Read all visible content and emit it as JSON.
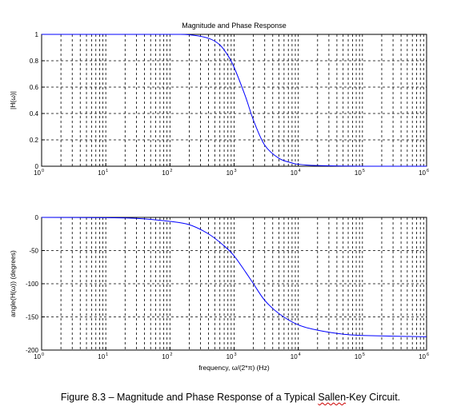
{
  "chart_data": [
    {
      "type": "line",
      "title": "Magnitude and Phase Response",
      "xlabel": "",
      "ylabel": "|H(ω)|",
      "x_scale": "log",
      "xlim": [
        1,
        1000000
      ],
      "ylim": [
        0,
        1
      ],
      "grid": true,
      "x_ticks": [
        {
          "base": "10",
          "exp": "0"
        },
        {
          "base": "10",
          "exp": "1"
        },
        {
          "base": "10",
          "exp": "2"
        },
        {
          "base": "10",
          "exp": "3"
        },
        {
          "base": "10",
          "exp": "4"
        },
        {
          "base": "10",
          "exp": "5"
        },
        {
          "base": "10",
          "exp": "6"
        }
      ],
      "y_ticks": [
        "0",
        "0.2",
        "0.4",
        "0.6",
        "0.8",
        "1"
      ],
      "color": "#0000ff",
      "series": [
        {
          "x": [
            1,
            10,
            100,
            200,
            400,
            600,
            800,
            1000,
            1500,
            2000,
            3000,
            5000,
            8000,
            10000,
            20000,
            100000,
            1000000
          ],
          "y": [
            1.0,
            1.0,
            1.0,
            0.997,
            0.97,
            0.92,
            0.84,
            0.75,
            0.53,
            0.35,
            0.16,
            0.06,
            0.025,
            0.015,
            0.005,
            0.0,
            0.0
          ]
        }
      ]
    },
    {
      "type": "line",
      "title": "",
      "xlabel": "frequency, ω/(2*π) (Hz)",
      "ylabel": "angle(H(ω)) (degrees)",
      "x_scale": "log",
      "xlim": [
        1,
        1000000
      ],
      "ylim": [
        -200,
        0
      ],
      "grid": true,
      "x_ticks": [
        {
          "base": "10",
          "exp": "0"
        },
        {
          "base": "10",
          "exp": "1"
        },
        {
          "base": "10",
          "exp": "2"
        },
        {
          "base": "10",
          "exp": "3"
        },
        {
          "base": "10",
          "exp": "4"
        },
        {
          "base": "10",
          "exp": "5"
        },
        {
          "base": "10",
          "exp": "6"
        }
      ],
      "y_ticks": [
        "0",
        "-50",
        "-100",
        "-150",
        "-200"
      ],
      "color": "#0000ff",
      "series": [
        {
          "x": [
            1,
            10,
            30,
            100,
            200,
            400,
            700,
            1000,
            1500,
            2000,
            3000,
            5000,
            10000,
            20000,
            50000,
            100000,
            1000000
          ],
          "y": [
            0,
            -0.5,
            -1.5,
            -6,
            -11,
            -25,
            -43,
            -58,
            -82,
            -100,
            -125,
            -145,
            -162,
            -170,
            -176,
            -178,
            -180
          ]
        }
      ]
    }
  ],
  "caption": {
    "prefix": "Figure 8.3 – Magnitude and Phase Response of a Typical ",
    "underlined": "Sallen",
    "suffix": "-Key Circuit."
  }
}
